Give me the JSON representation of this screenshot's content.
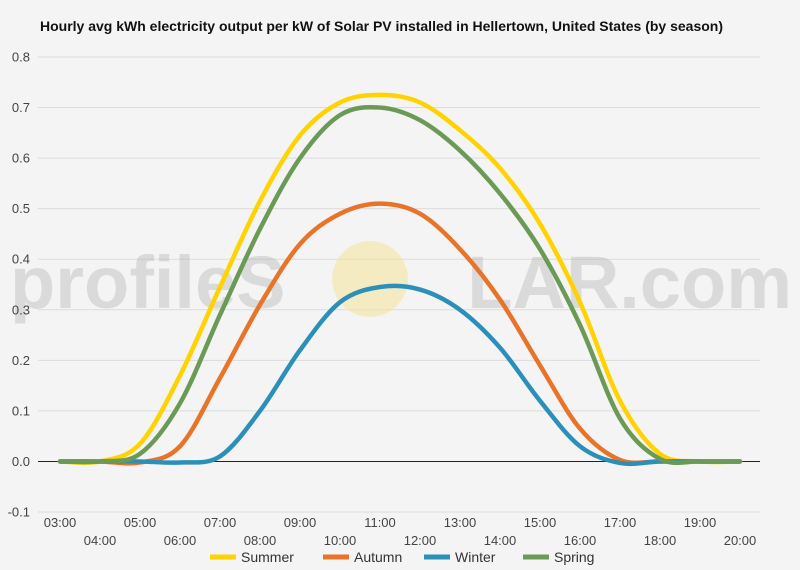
{
  "chart_data": {
    "type": "line",
    "title": "Hourly avg kWh electricity output per kW of Solar PV installed in Hellertown, United States (by season)",
    "xlabel": "",
    "ylabel": "",
    "x": [
      "03:00",
      "04:00",
      "05:00",
      "06:00",
      "07:00",
      "08:00",
      "09:00",
      "10:00",
      "11:00",
      "12:00",
      "13:00",
      "14:00",
      "15:00",
      "16:00",
      "17:00",
      "18:00",
      "19:00",
      "20:00"
    ],
    "ylim": [
      -0.1,
      0.8
    ],
    "yticks": [
      "-0.1",
      "0.0",
      "0.1",
      "0.2",
      "0.3",
      "0.4",
      "0.5",
      "0.6",
      "0.7",
      "0.8"
    ],
    "grid": "horizontal",
    "legend_position": "bottom",
    "series": [
      {
        "name": "Summer",
        "color": "#ffd200",
        "values": [
          0.0,
          0.0,
          0.035,
          0.17,
          0.345,
          0.515,
          0.645,
          0.71,
          0.725,
          0.71,
          0.655,
          0.58,
          0.47,
          0.315,
          0.12,
          0.015,
          0.0,
          0.0
        ]
      },
      {
        "name": "Autumn",
        "color": "#e8742a",
        "values": [
          0.0,
          0.0,
          -0.002,
          0.03,
          0.165,
          0.31,
          0.43,
          0.49,
          0.51,
          0.49,
          0.42,
          0.32,
          0.19,
          0.065,
          0.003,
          0.0,
          0.0,
          0.0
        ]
      },
      {
        "name": "Winter",
        "color": "#2c8fb8",
        "values": [
          0.0,
          0.0,
          0.0,
          -0.002,
          0.01,
          0.1,
          0.22,
          0.315,
          0.345,
          0.34,
          0.3,
          0.225,
          0.12,
          0.03,
          -0.003,
          0.0,
          0.0,
          0.0
        ]
      },
      {
        "name": "Spring",
        "color": "#6a9a55",
        "values": [
          0.0,
          0.0,
          0.015,
          0.115,
          0.29,
          0.46,
          0.6,
          0.685,
          0.7,
          0.675,
          0.615,
          0.53,
          0.42,
          0.27,
          0.085,
          0.005,
          0.0,
          0.0
        ]
      }
    ]
  },
  "watermark": {
    "text_left": "profileS",
    "text_right": "LAR.com"
  }
}
